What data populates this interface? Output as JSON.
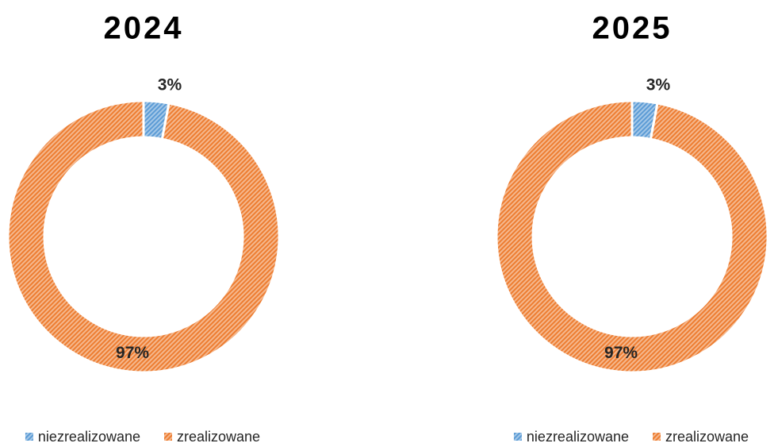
{
  "chart_data": [
    {
      "type": "donut",
      "title": "2024",
      "categories": [
        "niezrealizowane",
        "zrealizowane"
      ],
      "values": [
        3,
        97
      ],
      "value_labels": [
        "3%",
        "97%"
      ],
      "colors": [
        "#5b9bd5",
        "#ed7d31"
      ],
      "legend": "bottom"
    },
    {
      "type": "donut",
      "title": "2025",
      "categories": [
        "niezrealizowane",
        "zrealizowane"
      ],
      "values": [
        3,
        97
      ],
      "value_labels": [
        "3%",
        "97%"
      ],
      "colors": [
        "#5b9bd5",
        "#ed7d31"
      ],
      "legend": "bottom"
    }
  ]
}
